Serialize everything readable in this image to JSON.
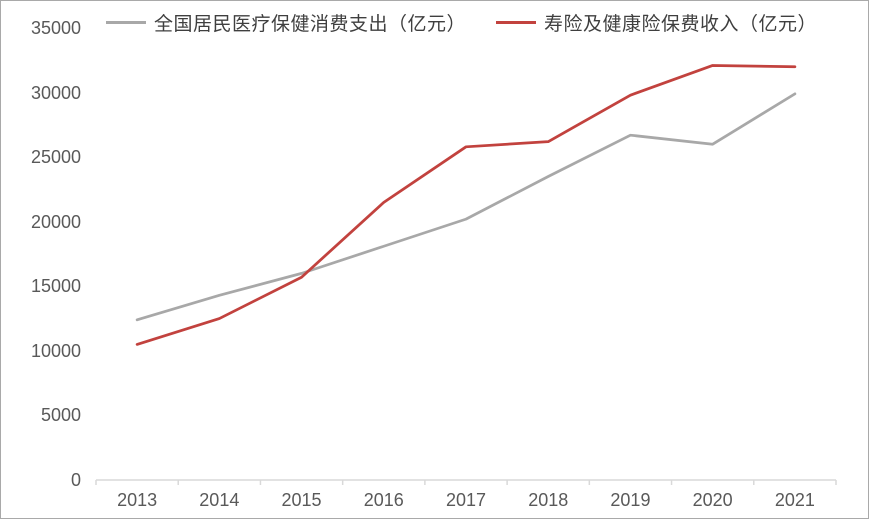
{
  "chart_data": {
    "type": "line",
    "title": "",
    "xlabel": "",
    "ylabel": "",
    "x": [
      "2013",
      "2014",
      "2015",
      "2016",
      "2017",
      "2018",
      "2019",
      "2020",
      "2021"
    ],
    "series": [
      {
        "name": "全国居民医疗保健消费支出（亿元）",
        "color": "#a8a8a8",
        "values": [
          12400,
          14300,
          16000,
          18100,
          20200,
          23500,
          26700,
          26000,
          29900
        ]
      },
      {
        "name": "寿险及健康险保费收入（亿元）",
        "color": "#c2423e",
        "values": [
          10500,
          12500,
          15700,
          21500,
          25800,
          26200,
          29800,
          32100,
          32000
        ]
      }
    ],
    "ylim": [
      0,
      35000
    ],
    "y_ticks": [
      0,
      5000,
      10000,
      15000,
      20000,
      25000,
      30000,
      35000
    ],
    "grid": false,
    "legend_position": "top",
    "axis_color": "#d9d9d9",
    "tick_label_color": "#595959"
  }
}
